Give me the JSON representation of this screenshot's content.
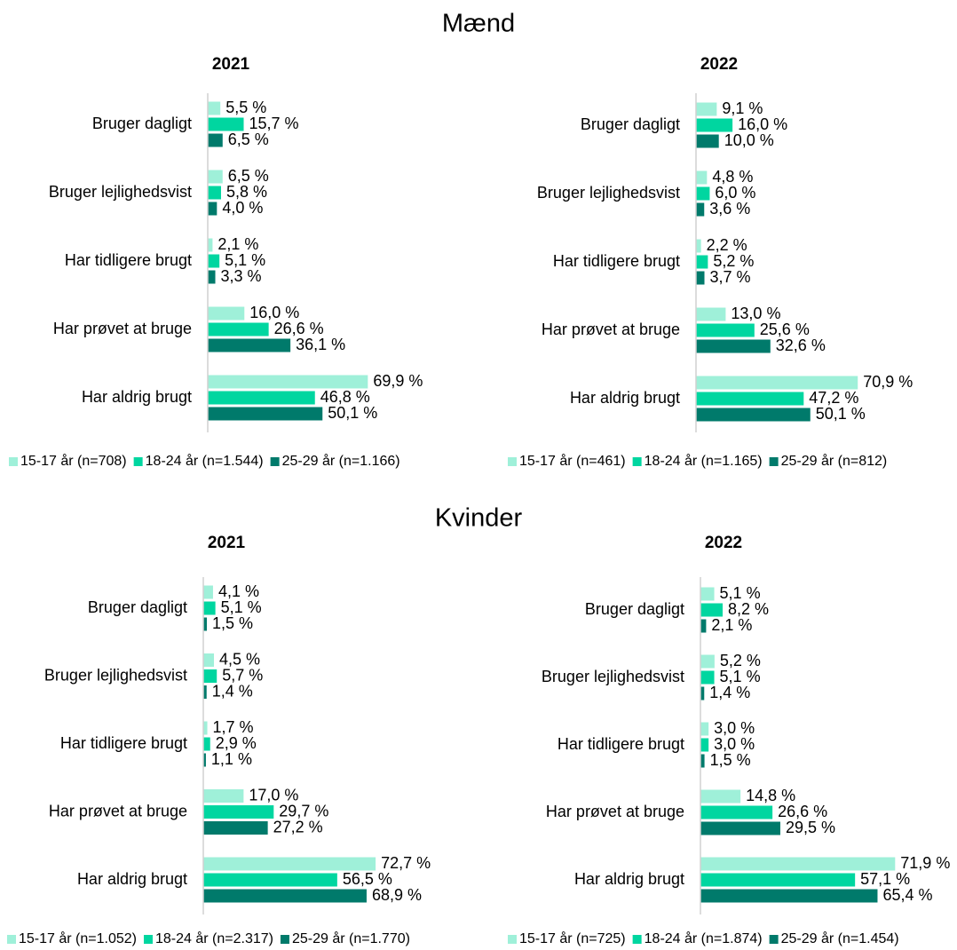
{
  "section_titles": [
    "Mænd",
    "Kvinder"
  ],
  "chart_data": [
    {
      "type": "hbar",
      "title": "2021",
      "xlim": [
        0,
        100
      ],
      "categories": [
        "Bruger dagligt",
        "Bruger lejlighedsvist",
        "Har tidligere brugt",
        "Har prøvet at bruge",
        "Har aldrig brugt"
      ],
      "series": [
        {
          "name": "15-17 år (n=708)",
          "color": "#9ff0d9",
          "values": [
            5.5,
            6.5,
            2.1,
            16.0,
            69.9
          ],
          "value_labels": [
            "5,5 %",
            "6,5 %",
            "2,1 %",
            "16,0 %",
            "69,9 %"
          ]
        },
        {
          "name": "18-24 år (n=1.544)",
          "color": "#00d6a0",
          "values": [
            15.7,
            5.8,
            5.1,
            26.6,
            46.8
          ],
          "value_labels": [
            "15,7 %",
            "5,8 %",
            "5,1 %",
            "26,6 %",
            "46,8 %"
          ]
        },
        {
          "name": "25-29 år (n=1.166)",
          "color": "#007a6b",
          "values": [
            6.5,
            4.0,
            3.3,
            36.1,
            50.1
          ],
          "value_labels": [
            "6,5 %",
            "4,0 %",
            "3,3 %",
            "36,1 %",
            "50,1 %"
          ]
        }
      ]
    },
    {
      "type": "hbar",
      "title": "2022",
      "xlim": [
        0,
        100
      ],
      "categories": [
        "Bruger dagligt",
        "Bruger lejlighedsvist",
        "Har tidligere brugt",
        "Har prøvet at bruge",
        "Har aldrig brugt"
      ],
      "series": [
        {
          "name": "15-17 år (n=461)",
          "color": "#9ff0d9",
          "values": [
            9.1,
            4.8,
            2.2,
            13.0,
            70.9
          ],
          "value_labels": [
            "9,1 %",
            "4,8 %",
            "2,2 %",
            "13,0 %",
            "70,9 %"
          ]
        },
        {
          "name": "18-24 år (n=1.165)",
          "color": "#00d6a0",
          "values": [
            16.0,
            6.0,
            5.2,
            25.6,
            47.2
          ],
          "value_labels": [
            "16,0 %",
            "6,0 %",
            "5,2 %",
            "25,6 %",
            "47,2 %"
          ]
        },
        {
          "name": "25-29 år (n=812)",
          "color": "#007a6b",
          "values": [
            10.0,
            3.6,
            3.7,
            32.6,
            50.1
          ],
          "value_labels": [
            "10,0 %",
            "3,6 %",
            "3,7 %",
            "32,6 %",
            "50,1 %"
          ]
        }
      ]
    },
    {
      "type": "hbar",
      "title": "2021",
      "xlim": [
        0,
        100
      ],
      "categories": [
        "Bruger dagligt",
        "Bruger lejlighedsvist",
        "Har tidligere brugt",
        "Har prøvet at bruge",
        "Har aldrig brugt"
      ],
      "series": [
        {
          "name": "15-17 år (n=1.052)",
          "color": "#9ff0d9",
          "values": [
            4.1,
            4.5,
            1.7,
            17.0,
            72.7
          ],
          "value_labels": [
            "4,1 %",
            "4,5 %",
            "1,7 %",
            "17,0 %",
            "72,7 %"
          ]
        },
        {
          "name": "18-24 år (n=2.317)",
          "color": "#00d6a0",
          "values": [
            5.1,
            5.7,
            2.9,
            29.7,
            56.5
          ],
          "value_labels": [
            "5,1 %",
            "5,7 %",
            "2,9 %",
            "29,7 %",
            "56,5 %"
          ]
        },
        {
          "name": "25-29 år (n=1.770)",
          "color": "#007a6b",
          "values": [
            1.5,
            1.4,
            1.1,
            27.2,
            68.9
          ],
          "value_labels": [
            "1,5 %",
            "1,4 %",
            "1,1 %",
            "27,2 %",
            "68,9 %"
          ]
        }
      ]
    },
    {
      "type": "hbar",
      "title": "2022",
      "xlim": [
        0,
        100
      ],
      "categories": [
        "Bruger dagligt",
        "Bruger lejlighedsvist",
        "Har tidligere brugt",
        "Har prøvet at bruge",
        "Har aldrig brugt"
      ],
      "series": [
        {
          "name": "15-17 år (n=725)",
          "color": "#9ff0d9",
          "values": [
            5.1,
            5.2,
            3.0,
            14.8,
            71.9
          ],
          "value_labels": [
            "5,1 %",
            "5,2 %",
            "3,0 %",
            "14,8 %",
            "71,9 %"
          ]
        },
        {
          "name": "18-24 år (n=1.874)",
          "color": "#00d6a0",
          "values": [
            8.2,
            5.1,
            3.0,
            26.6,
            57.1
          ],
          "value_labels": [
            "8,2 %",
            "5,1 %",
            "3,0 %",
            "26,6 %",
            "57,1 %"
          ]
        },
        {
          "name": "25-29 år (n=1.454)",
          "color": "#007a6b",
          "values": [
            2.1,
            1.4,
            1.5,
            29.5,
            65.4
          ],
          "value_labels": [
            "2,1 %",
            "1,4 %",
            "1,5 %",
            "29,5 %",
            "65,4 %"
          ]
        }
      ]
    }
  ]
}
